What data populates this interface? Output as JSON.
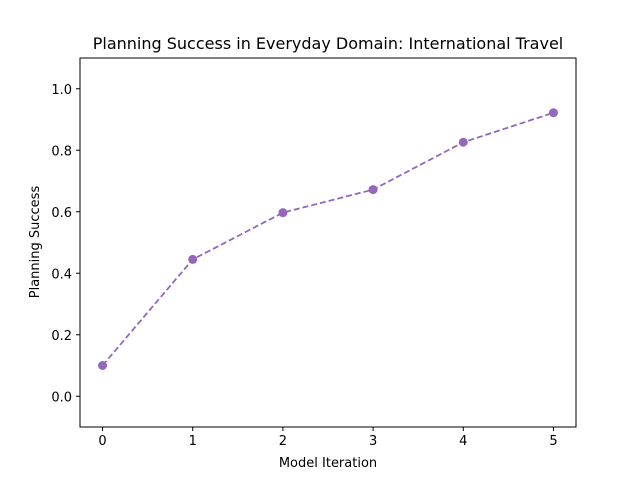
{
  "chart_data": {
    "type": "line",
    "title": "Planning Success in Everyday Domain: International Travel",
    "xlabel": "Model Iteration",
    "ylabel": "Planning Success",
    "x": [
      0,
      1,
      2,
      3,
      4,
      5
    ],
    "series": [
      {
        "values": [
          0.1,
          0.445,
          0.597,
          0.672,
          0.826,
          0.922
        ]
      }
    ],
    "xlim": [
      -0.25,
      5.25
    ],
    "ylim": [
      -0.1,
      1.1
    ],
    "xticks": [
      "0",
      "1",
      "2",
      "3",
      "4",
      "5"
    ],
    "yticks": [
      "0.0",
      "0.2",
      "0.4",
      "0.6",
      "0.8",
      "1.0"
    ],
    "grid": false,
    "line_style": "dashed",
    "marker": "circle",
    "color": "#9467bd"
  }
}
